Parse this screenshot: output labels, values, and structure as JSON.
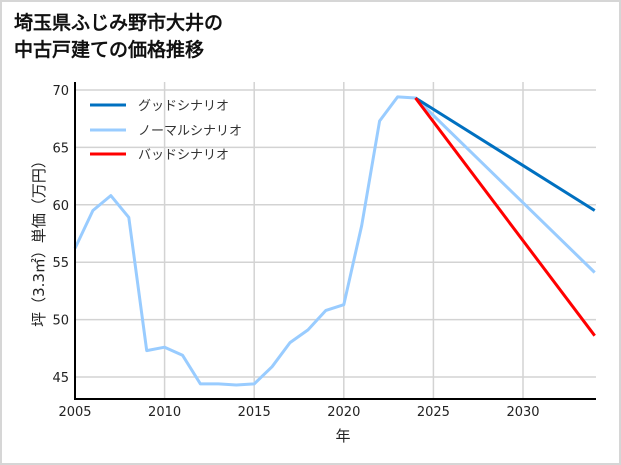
{
  "chart_data": {
    "type": "line",
    "title": "埼玉県ふじみ野市大井の中古戸建ての価格推移",
    "title_lines": [
      "埼玉県ふじみ野市大井の",
      "中古戸建ての価格推移"
    ],
    "xlabel": "年",
    "ylabel": "坪（3.3㎡）単価（万円）",
    "xlim": [
      2005,
      2034
    ],
    "ylim": [
      43,
      71
    ],
    "xticks": [
      2005,
      2010,
      2015,
      2020,
      2025,
      2030
    ],
    "yticks": [
      45,
      50,
      55,
      60,
      65,
      70
    ],
    "grid": true,
    "legend_position": "upper left",
    "series": [
      {
        "name": "グッドシナリオ",
        "color": "#0070c0",
        "x": [
          2024,
          2034
        ],
        "values": [
          69.3,
          59.5
        ]
      },
      {
        "name": "ノーマルシナリオ",
        "color": "#99ccff",
        "x": [
          2005,
          2006,
          2007,
          2008,
          2009,
          2010,
          2011,
          2012,
          2013,
          2014,
          2015,
          2016,
          2017,
          2018,
          2019,
          2020,
          2021,
          2022,
          2023,
          2024,
          2034
        ],
        "values": [
          56.2,
          59.5,
          60.8,
          58.9,
          47.3,
          47.6,
          46.9,
          44.4,
          44.4,
          44.3,
          44.4,
          45.9,
          48.0,
          49.1,
          50.8,
          51.3,
          58.2,
          67.3,
          69.4,
          69.3,
          54.1
        ]
      },
      {
        "name": "バッドシナリオ",
        "color": "#ff0000",
        "x": [
          2024,
          2034
        ],
        "values": [
          69.3,
          48.6
        ]
      }
    ]
  },
  "legend": {
    "good": "グッドシナリオ",
    "normal": "ノーマルシナリオ",
    "bad": "バッドシナリオ"
  },
  "axis": {
    "xlabel": "年",
    "ylabel": "坪（3.3㎡）単価（万円）"
  }
}
